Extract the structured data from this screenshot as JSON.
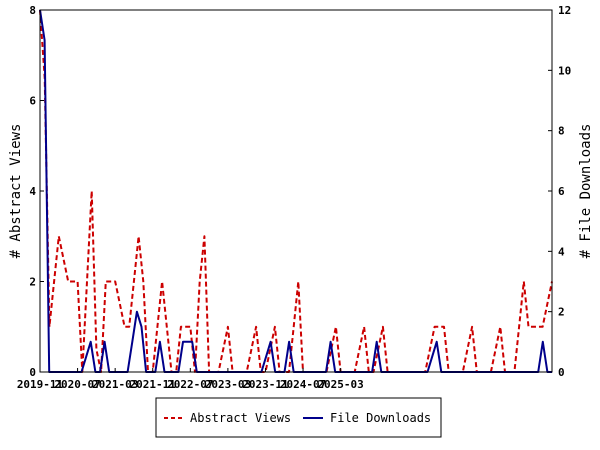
{
  "chart_data": {
    "type": "line",
    "xlabel": "",
    "ylabel": "# Abstract Views",
    "y2label": "# File Downloads",
    "x_ticks": [
      "2019-11",
      "2020-07",
      "2021-03",
      "2021-11",
      "2022-07",
      "2023-03",
      "2023-11",
      "2024-07",
      "2025-03"
    ],
    "ylim": [
      0,
      8
    ],
    "y_ticks": [
      "0",
      "2",
      "4",
      "6",
      "8"
    ],
    "y2lim": [
      0,
      12
    ],
    "y2_ticks": [
      "0",
      "2",
      "4",
      "6",
      "8",
      "10",
      "12"
    ],
    "legend_position": "bottom",
    "grid": false,
    "series": [
      {
        "name": "Abstract Views",
        "axis": "left",
        "color": "#cc0000",
        "style": "dashed",
        "values": [
          8,
          6.5,
          1,
          2,
          3,
          2.5,
          2,
          2,
          2,
          0,
          2,
          4,
          0.5,
          0,
          2,
          2,
          2,
          1.5,
          1,
          1,
          2,
          3,
          2,
          0,
          0,
          1,
          2,
          1,
          0,
          0,
          1,
          1,
          1,
          0,
          2,
          3,
          0,
          0,
          0,
          0.5,
          1,
          0,
          0,
          0,
          0,
          0.5,
          1,
          0,
          0,
          0.5,
          1,
          0,
          0,
          0,
          1,
          2,
          0,
          0,
          0,
          0,
          0,
          0,
          0.5,
          1,
          0,
          0,
          0,
          0,
          0.5,
          1,
          0,
          0,
          0.5,
          1,
          0,
          0,
          0,
          0,
          0,
          0,
          0,
          0,
          0,
          0.5,
          1,
          1,
          1,
          0,
          0,
          0,
          0,
          0.5,
          1,
          0,
          0,
          0,
          0,
          0.5,
          1,
          0,
          0,
          0,
          1,
          2,
          1,
          1,
          1,
          1,
          1.5,
          2
        ]
      },
      {
        "name": "File Downloads",
        "axis": "right",
        "color": "#00008b",
        "style": "solid",
        "values": [
          12,
          11,
          0,
          0,
          0,
          0,
          0,
          0,
          0,
          0,
          0.5,
          1,
          0,
          0,
          1,
          0,
          0,
          0,
          0,
          0,
          1,
          2,
          1.5,
          0,
          0,
          0,
          1,
          0,
          0,
          0,
          0,
          1,
          1,
          1,
          0,
          0,
          0,
          0,
          0,
          0,
          0,
          0,
          0,
          0,
          0,
          0,
          0,
          0,
          0,
          0.5,
          1,
          0,
          0,
          0,
          1,
          0,
          0,
          0,
          0,
          0,
          0,
          0,
          0,
          1,
          0,
          0,
          0,
          0,
          0,
          0,
          0,
          0,
          0,
          1,
          0,
          0,
          0,
          0,
          0,
          0,
          0,
          0,
          0,
          0,
          0,
          0.5,
          1,
          0,
          0,
          0,
          0,
          0,
          0,
          0,
          0,
          0,
          0,
          0,
          0,
          0,
          0,
          0,
          0,
          0,
          0,
          0,
          0,
          0,
          0,
          1,
          0,
          0
        ]
      }
    ]
  },
  "legend": {
    "items": [
      {
        "label": "Abstract Views",
        "color": "#cc0000",
        "style": "dashed"
      },
      {
        "label": "File Downloads",
        "color": "#00008b",
        "style": "solid"
      }
    ]
  }
}
